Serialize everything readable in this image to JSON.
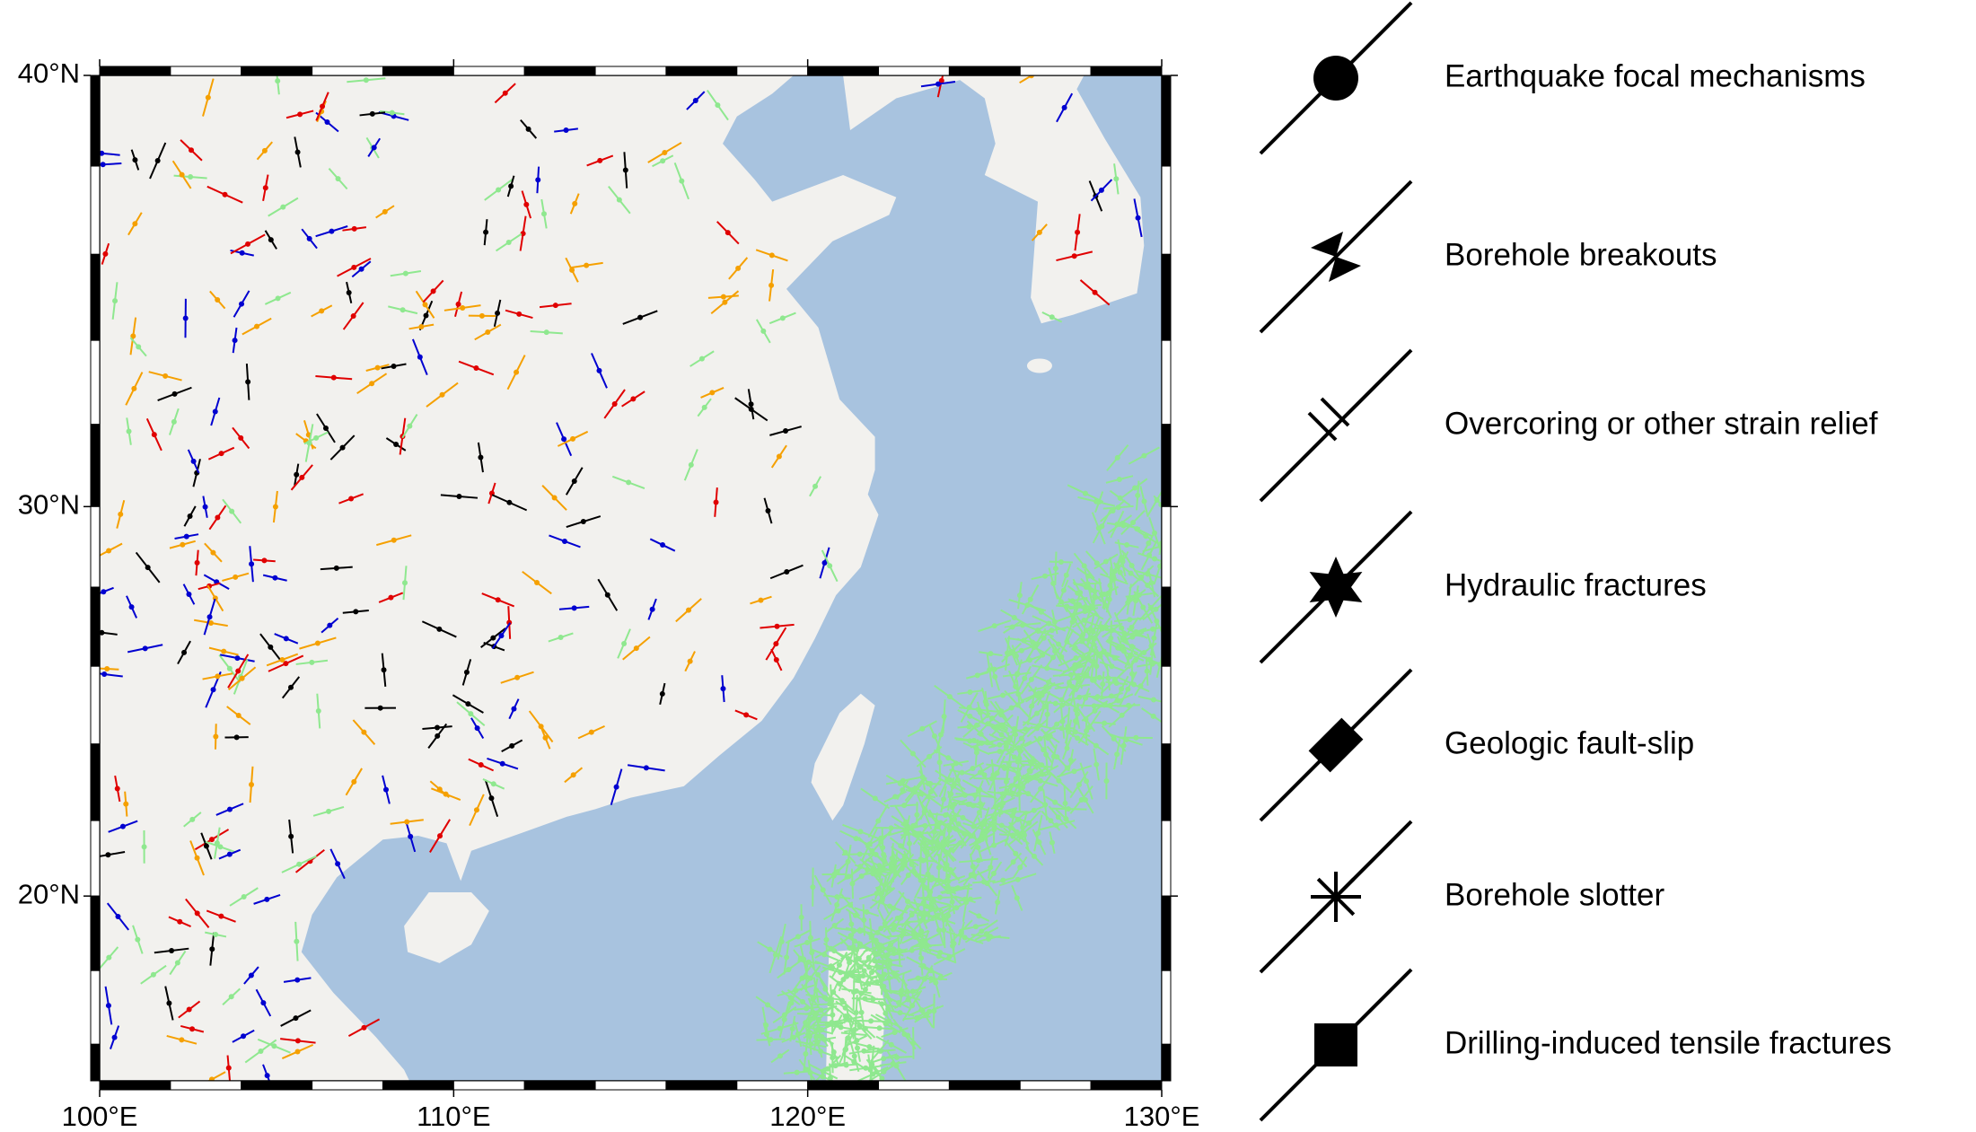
{
  "map": {
    "lon_range": [
      100,
      130
    ],
    "lat_range": [
      15,
      40
    ],
    "lon_ticks": [
      {
        "value": 100,
        "label": "100°E"
      },
      {
        "value": 110,
        "label": "110°E"
      },
      {
        "value": 120,
        "label": "120°E"
      },
      {
        "value": 130,
        "label": "130°E"
      }
    ],
    "lat_ticks": [
      {
        "value": 20,
        "label": "20°N"
      },
      {
        "value": 30,
        "label": "30°N"
      },
      {
        "value": 40,
        "label": "40°N"
      }
    ]
  },
  "legend": [
    "Earthquake focal mechanisms",
    "Borehole breakouts",
    "Overcoring or other strain relief",
    "Hydraulic fractures",
    "Geologic fault-slip",
    "Borehole slotter",
    "Drilling-induced tensile fractures"
  ]
}
